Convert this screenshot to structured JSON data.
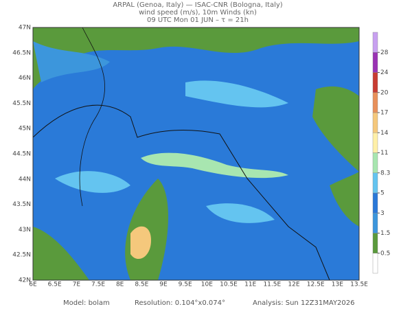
{
  "header": {
    "line1": "ARPAL (Genoa, Italy)  —  ISAC-CNR (Bologna, Italy)",
    "line2": "wind speed (m/s), 10m Winds (kn)",
    "line3": "09 UTC Mon 01 JUN  –  τ = 21h"
  },
  "map": {
    "lat_labels": [
      "47N",
      "46.5N",
      "46N",
      "45.5N",
      "45N",
      "44.5N",
      "44N",
      "43.5N",
      "43N",
      "42.5N",
      "42N"
    ],
    "lon_labels": [
      "6E",
      "6.5E",
      "7E",
      "7.5E",
      "8E",
      "8.5E",
      "9E",
      "9.5E",
      "10E",
      "10.5E",
      "11E",
      "11.5E",
      "12E",
      "12.5E",
      "13E",
      "13.5E"
    ]
  },
  "colorbar": {
    "levels": [
      0.5,
      1.5,
      3,
      5,
      8.3,
      11,
      14,
      17,
      20,
      24,
      28
    ],
    "colors": [
      "#ffffff",
      "#5a9a3c",
      "#3c96dc",
      "#2a78d8",
      "#64c4f0",
      "#a8e6b0",
      "#fff0a8",
      "#f5c87c",
      "#e8905a",
      "#c83c32",
      "#9a32b4",
      "#c8a0f0"
    ]
  },
  "footer": {
    "model": "Model: bolam",
    "resolution": "Resolution: 0.104°x0.074°",
    "analysis": "Analysis: Sun 12Z31MAY2026"
  }
}
